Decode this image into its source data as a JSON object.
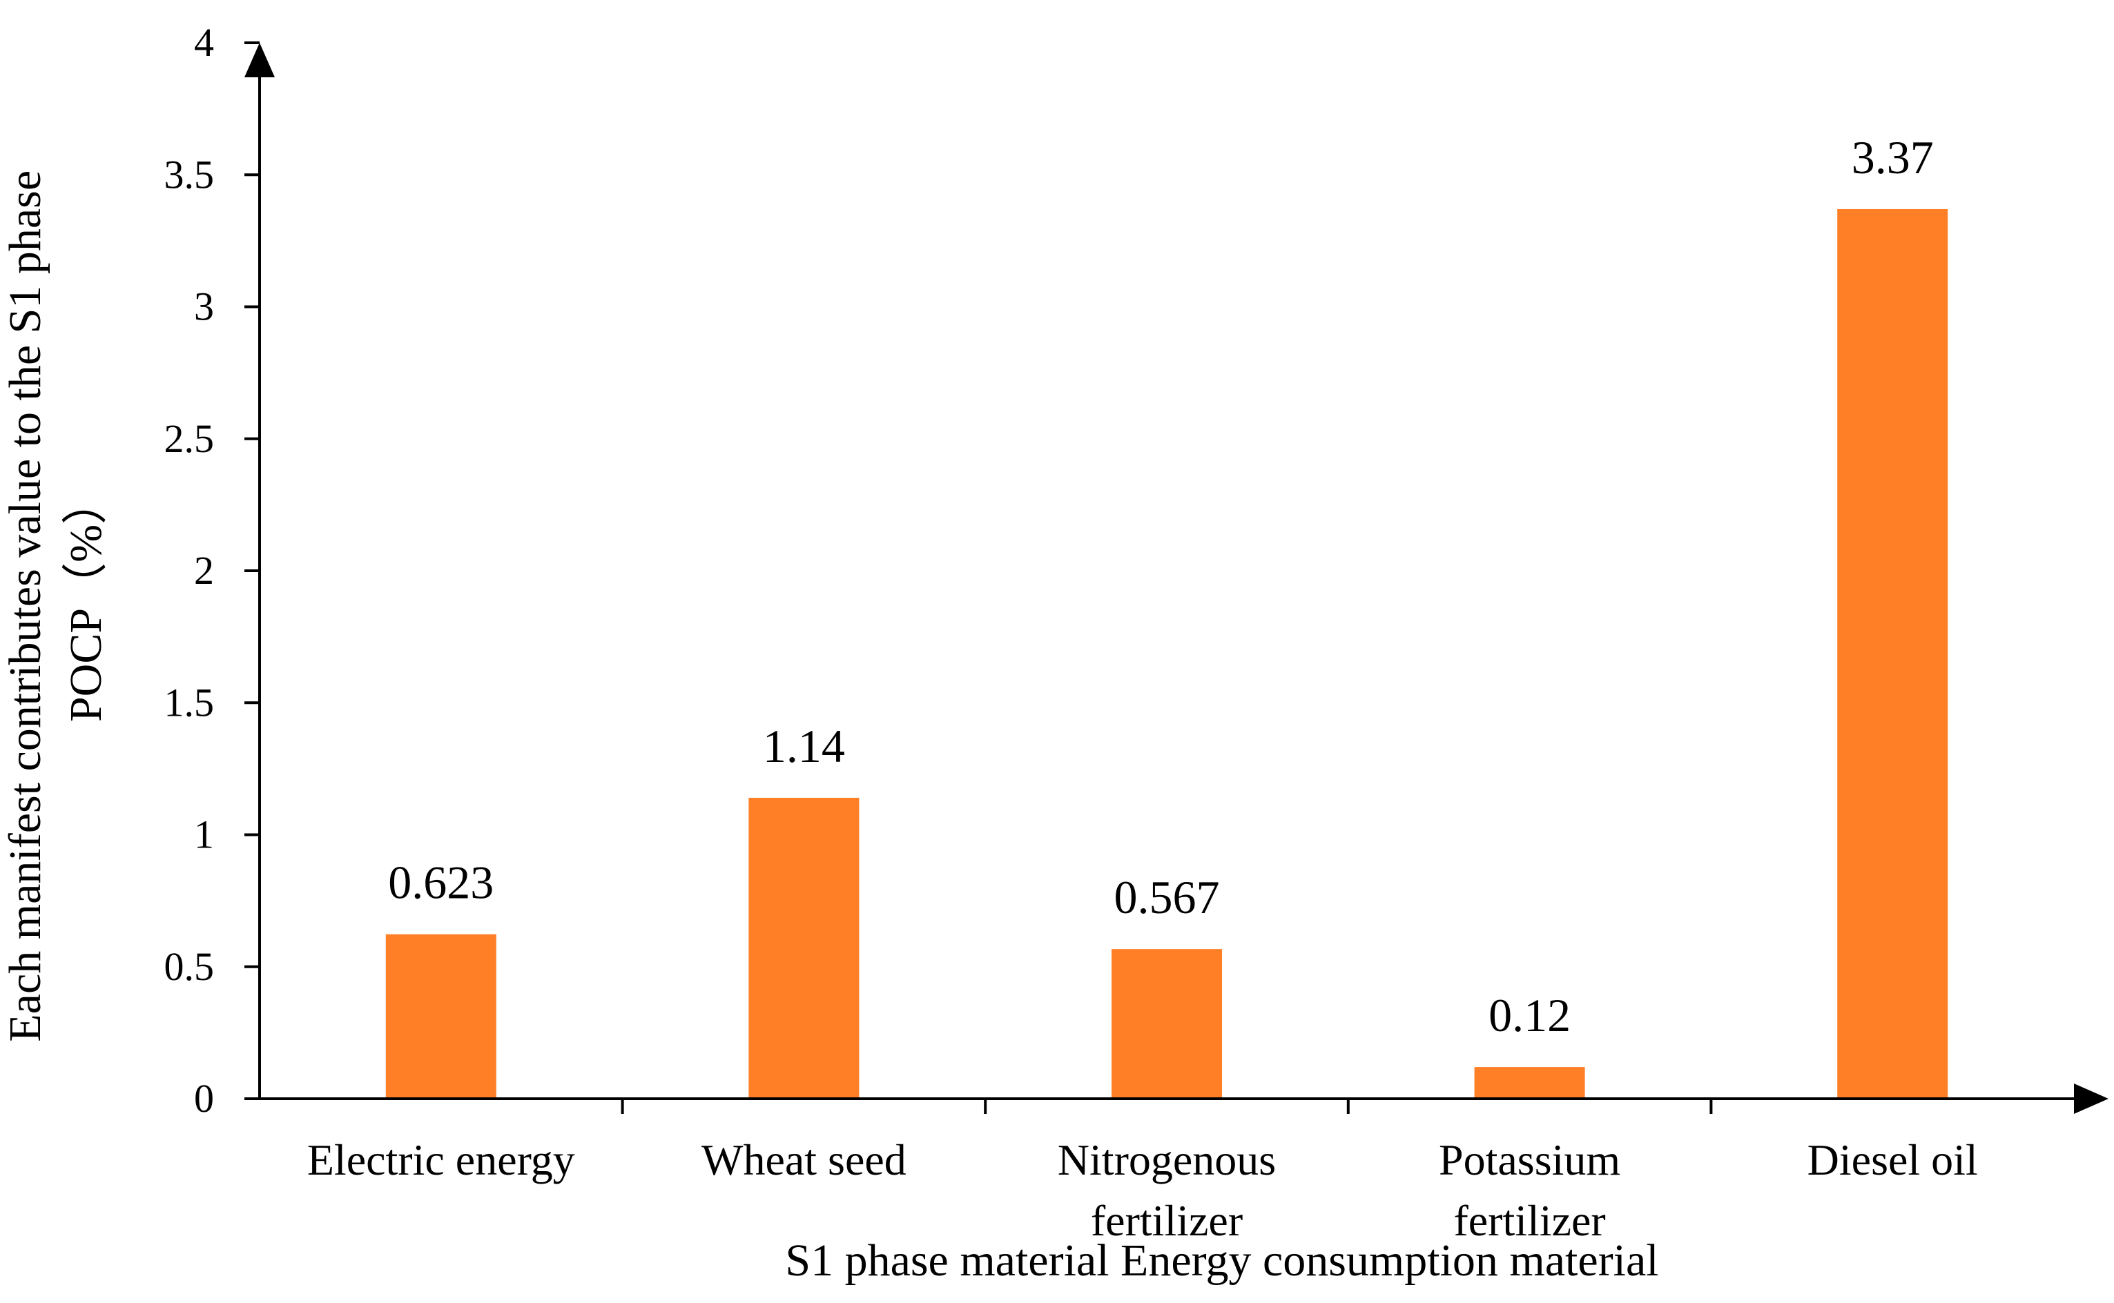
{
  "chart_data": {
    "type": "bar",
    "title": "",
    "xlabel": "S1 phase material Energy consumption material",
    "ylabel_lines": [
      "Each manifest contributes value to the S1 phase",
      "POCP（%）"
    ],
    "categories": [
      [
        "Electric energy"
      ],
      [
        "Wheat seed"
      ],
      [
        "Nitrogenous",
        "fertilizer"
      ],
      [
        "Potassium",
        "fertilizer"
      ],
      [
        "Diesel oil"
      ]
    ],
    "values": [
      0.623,
      1.14,
      0.567,
      0.12,
      3.37
    ],
    "value_labels": [
      "0.623",
      "1.14",
      "0.567",
      "0.12",
      "3.37"
    ],
    "ylim": [
      0,
      4
    ],
    "yticks": [
      0,
      0.5,
      1,
      1.5,
      2,
      2.5,
      3,
      3.5,
      4
    ],
    "ytick_labels": [
      "0",
      "0.5",
      "1",
      "1.5",
      "2",
      "2.5",
      "3",
      "3.5",
      "4"
    ],
    "grid": false,
    "legend": "none",
    "colors": {
      "bar": "#ff7f27",
      "axis": "#000000",
      "text": "#000000"
    }
  }
}
